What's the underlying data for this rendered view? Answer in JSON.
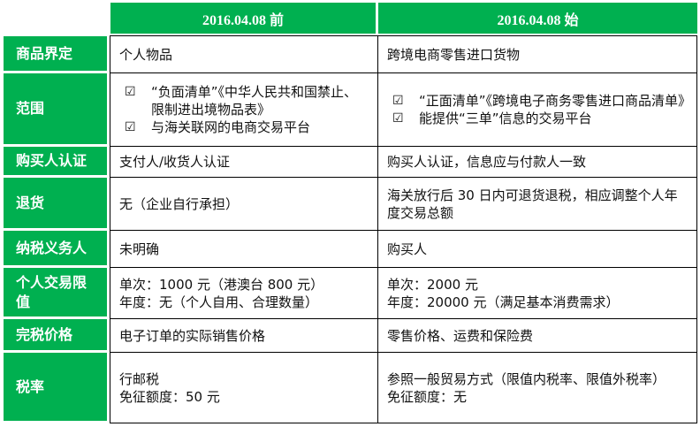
{
  "headers": [
    "2016.04.08  前",
    "2016.04.08  始"
  ],
  "rows": [
    {
      "label": "商品界定",
      "before": [
        "个人物品"
      ],
      "after": [
        "跨境电商零售进口货物"
      ]
    },
    {
      "label": "范围",
      "before_items": [
        "“负面清单”《中华人民共和国禁止、限制进出境物品表》",
        "与海关联网的电商交易平台"
      ],
      "after_items": [
        "“正面清单”《跨境电子商务零售进口商品清单》",
        "能提供“三单”信息的交易平台"
      ]
    },
    {
      "label": "购买人认证",
      "before": [
        "支付人/收货人认证"
      ],
      "after": [
        "购买人认证，信息应与付款人一致"
      ]
    },
    {
      "label": "退货",
      "before": [
        "无（企业自行承担）"
      ],
      "after": [
        "海关放行后 30 日内可退货退税，相应调整个人年度交易总额"
      ]
    },
    {
      "label": "纳税义务人",
      "before": [
        "未明确"
      ],
      "after": [
        "购买人"
      ]
    },
    {
      "label": "个人交易限值",
      "before": [
        "单次：1000 元（港澳台 800 元）",
        "年度：无（个人自用、合理数量）"
      ],
      "after": [
        "单次：2000 元",
        "年度：20000 元（满足基本消费需求）"
      ]
    },
    {
      "label": "完税价格",
      "before": [
        "电子订单的实际销售价格"
      ],
      "after": [
        "零售价格、运费和保险费"
      ]
    },
    {
      "label": "税率",
      "before": [
        "行邮税",
        "免征额度：50 元"
      ],
      "after": [
        "参照一般贸易方式（限值内税率、限值外税率）",
        "免征额度：无"
      ]
    }
  ],
  "checkbox_icon": "☑",
  "accent": "#00b050"
}
